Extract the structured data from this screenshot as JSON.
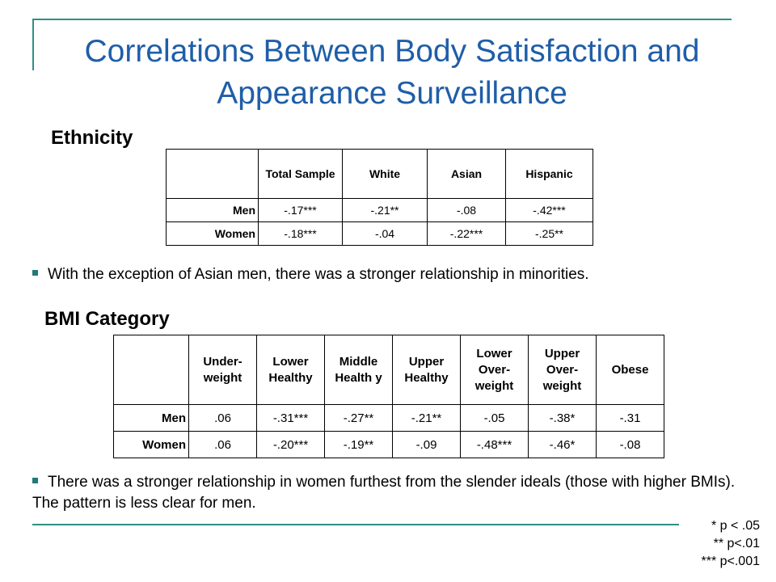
{
  "title": "Correlations Between Body Satisfaction and Appearance Surveillance",
  "ethnicity": {
    "heading": "Ethnicity",
    "columns": [
      "",
      "Total Sample",
      "White",
      "Asian",
      "Hispanic"
    ],
    "rows": [
      {
        "label": "Men",
        "values": [
          "-.17***",
          "-.21**",
          "-.08",
          "-.42***"
        ]
      },
      {
        "label": "Women",
        "values": [
          "-.18***",
          "-.04",
          "-.22***",
          "-.25**"
        ]
      }
    ],
    "note": "With the exception of Asian men, there was a stronger relationship in minorities."
  },
  "bmi": {
    "heading": "BMI Category",
    "columns": [
      "",
      "Under-weight",
      "Lower Healthy",
      "Middle Health y",
      "Upper Healthy",
      "Lower Over-weight",
      "Upper Over-weight",
      "Obese"
    ],
    "rows": [
      {
        "label": "Men",
        "values": [
          ".06",
          "-.31***",
          "-.27**",
          "-.21**",
          "-.05",
          "-.38*",
          "-.31"
        ]
      },
      {
        "label": "Women",
        "values": [
          ".06",
          "-.20***",
          "-.19**",
          "-.09",
          "-.48***",
          "-.46*",
          "-.08"
        ]
      }
    ],
    "note": "There was a stronger relationship in women furthest from the slender ideals (those with higher BMIs).  The pattern is less clear for men."
  },
  "significance": [
    "* p < .05",
    "** p<.01",
    "*** p<.001"
  ],
  "colors": {
    "title": "#1f5ea8",
    "accent_line": "#2f8f86",
    "bullet": "#1f7a7a"
  }
}
